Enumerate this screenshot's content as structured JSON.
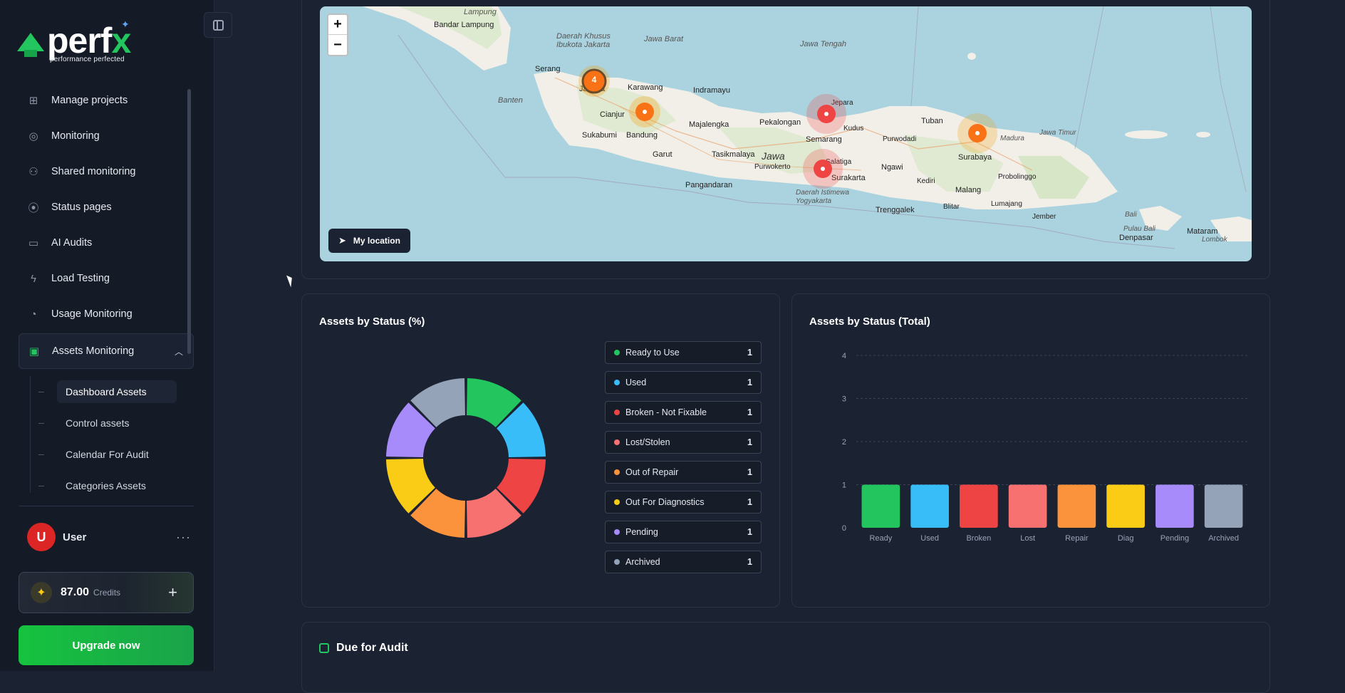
{
  "brand": {
    "name": "perf",
    "name_accent": "x",
    "tagline": "performance perfected"
  },
  "sidebar": {
    "items": [
      {
        "label": "Manage projects",
        "icon": "plus-square-icon"
      },
      {
        "label": "Monitoring",
        "icon": "target-icon"
      },
      {
        "label": "Shared monitoring",
        "icon": "users-icon"
      },
      {
        "label": "Status pages",
        "icon": "broadcast-icon"
      },
      {
        "label": "AI Audits",
        "icon": "monitor-check-icon"
      },
      {
        "label": "Load Testing",
        "icon": "lightning-icon"
      },
      {
        "label": "Usage Monitoring",
        "icon": "gauge-icon"
      },
      {
        "label": "Assets Monitoring",
        "icon": "devices-icon",
        "expanded": true
      }
    ],
    "sub_items": [
      {
        "label": "Dashboard Assets",
        "active": true
      },
      {
        "label": "Control assets"
      },
      {
        "label": "Calendar For Audit"
      },
      {
        "label": "Categories Assets"
      }
    ],
    "user": {
      "initial": "U",
      "name": "User"
    },
    "credits": {
      "amount": "87.00",
      "label": "Credits"
    },
    "upgrade_label": "Upgrade now"
  },
  "map": {
    "zoom_in": "+",
    "zoom_out": "−",
    "my_location_label": "My location",
    "cluster_count": "4",
    "place_labels": [
      {
        "text": "Lampung",
        "style": "ital"
      },
      {
        "text": "Bandar Lampung",
        "style": "normal"
      },
      {
        "text": "Daerah Khusus Ibukota Jakarta",
        "style": "ital"
      },
      {
        "text": "Jawa Barat",
        "style": "ital"
      },
      {
        "text": "Jawa Tengah",
        "style": "ital"
      },
      {
        "text": "Serang",
        "style": "normal"
      },
      {
        "text": "Jakarta",
        "style": "normal"
      },
      {
        "text": "Karawang",
        "style": "normal"
      },
      {
        "text": "Indramayu",
        "style": "normal"
      },
      {
        "text": "Banten",
        "style": "ital"
      },
      {
        "text": "Cianjur",
        "style": "normal"
      },
      {
        "text": "Bandung",
        "style": "normal"
      },
      {
        "text": "Sukabumi",
        "style": "normal"
      },
      {
        "text": "Majalengka",
        "style": "normal"
      },
      {
        "text": "Garut",
        "style": "normal"
      },
      {
        "text": "Tasikmalaya",
        "style": "normal"
      },
      {
        "text": "Pangandaran",
        "style": "normal"
      },
      {
        "text": "Jawa",
        "style": "big"
      },
      {
        "text": "Purwokerto",
        "style": "normal"
      },
      {
        "text": "Pekalongan",
        "style": "normal"
      },
      {
        "text": "Semarang",
        "style": "normal"
      },
      {
        "text": "Jepara",
        "style": "normal"
      },
      {
        "text": "Kudus",
        "style": "normal"
      },
      {
        "text": "Purwodadi",
        "style": "normal"
      },
      {
        "text": "Salatiga",
        "style": "normal"
      },
      {
        "text": "Surakarta",
        "style": "normal"
      },
      {
        "text": "Daerah Istimewa Yogyakarta",
        "style": "ital"
      },
      {
        "text": "Ngawi",
        "style": "normal"
      },
      {
        "text": "Tuban",
        "style": "normal"
      },
      {
        "text": "Surabaya",
        "style": "normal"
      },
      {
        "text": "Madura",
        "style": "ital"
      },
      {
        "text": "Jawa Timur",
        "style": "ital"
      },
      {
        "text": "Kediri",
        "style": "normal"
      },
      {
        "text": "Malang",
        "style": "normal"
      },
      {
        "text": "Probolinggo",
        "style": "normal"
      },
      {
        "text": "Lumajang",
        "style": "normal"
      },
      {
        "text": "Trenggalek",
        "style": "normal"
      },
      {
        "text": "Blitar",
        "style": "normal"
      },
      {
        "text": "Jember",
        "style": "normal"
      },
      {
        "text": "Bali",
        "style": "ital"
      },
      {
        "text": "Pulau Bali",
        "style": "ital"
      },
      {
        "text": "Denpasar",
        "style": "normal"
      },
      {
        "text": "Mataram",
        "style": "normal"
      },
      {
        "text": "Lombok",
        "style": "ital"
      }
    ]
  },
  "status_pct": {
    "title": "Assets by Status (%)",
    "legend": [
      {
        "label": "Ready to Use",
        "value": "1",
        "color": "#22c55e"
      },
      {
        "label": "Used",
        "value": "1",
        "color": "#38bdf8"
      },
      {
        "label": "Broken - Not Fixable",
        "value": "1",
        "color": "#ef4444"
      },
      {
        "label": "Lost/Stolen",
        "value": "1",
        "color": "#f87171"
      },
      {
        "label": "Out of Repair",
        "value": "1",
        "color": "#fb923c"
      },
      {
        "label": "Out For Diagnostics",
        "value": "1",
        "color": "#facc15"
      },
      {
        "label": "Pending",
        "value": "1",
        "color": "#a78bfa"
      },
      {
        "label": "Archived",
        "value": "1",
        "color": "#94a3b8"
      }
    ]
  },
  "status_total": {
    "title": "Assets by Status (Total)"
  },
  "chart_data": [
    {
      "type": "pie",
      "title": "Assets by Status (%)",
      "categories": [
        "Ready to Use",
        "Used",
        "Broken - Not Fixable",
        "Lost/Stolen",
        "Out of Repair",
        "Out For Diagnostics",
        "Pending",
        "Archived"
      ],
      "values": [
        1,
        1,
        1,
        1,
        1,
        1,
        1,
        1
      ],
      "colors": [
        "#22c55e",
        "#38bdf8",
        "#ef4444",
        "#f87171",
        "#fb923c",
        "#facc15",
        "#a78bfa",
        "#94a3b8"
      ],
      "donut": true
    },
    {
      "type": "bar",
      "title": "Assets by Status (Total)",
      "categories": [
        "Ready",
        "Used",
        "Broken",
        "Lost",
        "Repair",
        "Diag",
        "Pending",
        "Archived"
      ],
      "values": [
        1,
        1,
        1,
        1,
        1,
        1,
        1,
        1
      ],
      "colors": [
        "#22c55e",
        "#38bdf8",
        "#ef4444",
        "#f87171",
        "#fb923c",
        "#facc15",
        "#a78bfa",
        "#94a3b8"
      ],
      "ylim": [
        0,
        4
      ],
      "yticks": [
        "0",
        "1",
        "2",
        "3",
        "4"
      ],
      "grid": true
    }
  ],
  "audit": {
    "title": "Due for Audit"
  }
}
